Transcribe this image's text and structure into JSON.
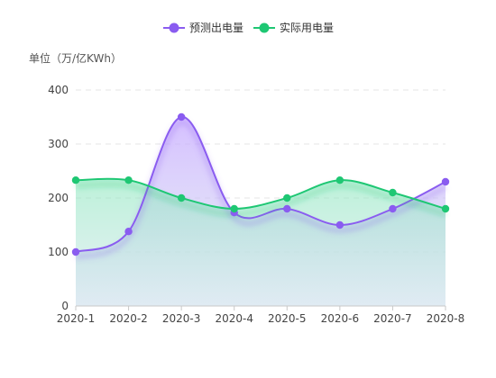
{
  "chart_data": {
    "type": "area",
    "unit_label": "单位（万/亿KWh）",
    "categories": [
      "2020-1",
      "2020-2",
      "2020-3",
      "2020-4",
      "2020-5",
      "2020-6",
      "2020-7",
      "2020-8"
    ],
    "ylim": [
      0,
      400
    ],
    "y_ticks": [
      0,
      100,
      200,
      300,
      400
    ],
    "grid": true,
    "legend_position": "top-center",
    "series": [
      {
        "name": "预测出电量",
        "color": "#8a5cf0",
        "values": [
          100,
          138,
          350,
          173,
          180,
          150,
          180,
          230
        ]
      },
      {
        "name": "实际用电量",
        "color": "#1ec773",
        "values": [
          233,
          233,
          200,
          180,
          200,
          233,
          210,
          180
        ]
      }
    ]
  }
}
